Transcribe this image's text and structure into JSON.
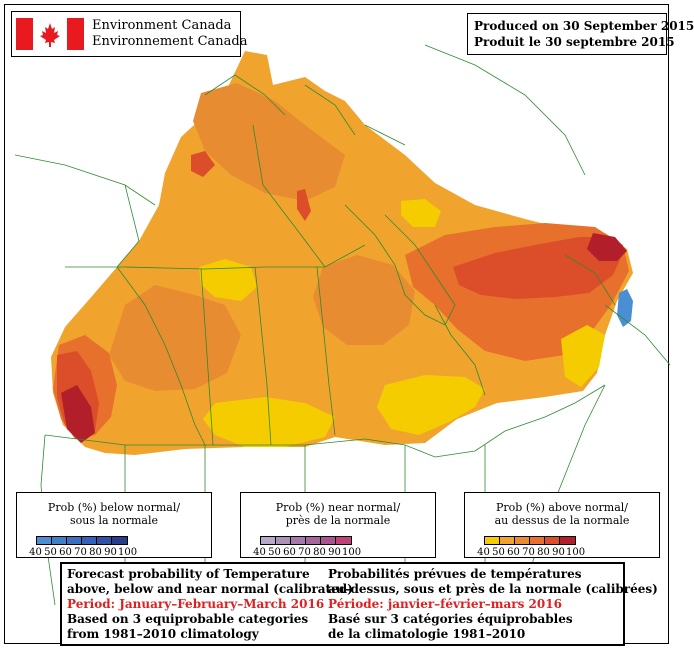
{
  "header": {
    "agency_en": "Environment Canada",
    "agency_fr": "Environnement Canada",
    "produced_en": "Produced on 30 September 2015",
    "produced_fr": "Produit le 30 septembre 2015"
  },
  "legends": [
    {
      "id": "below",
      "title_en": "Prob (%) below normal/",
      "title_fr": "sous la normale",
      "ticks": [
        "40",
        "50",
        "60",
        "70",
        "80",
        "90",
        "100"
      ],
      "colors": [
        "#4a8fd4",
        "#3f7fc8",
        "#3a70c0",
        "#3461b8",
        "#2f52a6",
        "#263e8a"
      ]
    },
    {
      "id": "near",
      "title_en": "Prob (%) near normal/",
      "title_fr": "près de la normale",
      "ticks": [
        "40",
        "50",
        "60",
        "70",
        "80",
        "90",
        "100"
      ],
      "colors": [
        "#b9a8c8",
        "#ad92b8",
        "#a57aaa",
        "#a6669c",
        "#ab5290",
        "#c0407a"
      ]
    },
    {
      "id": "above",
      "title_en": "Prob (%) above normal/",
      "title_fr": "au dessus de la normale",
      "ticks": [
        "40",
        "50",
        "60",
        "70",
        "80",
        "90",
        "100"
      ],
      "colors": [
        "#f5cc00",
        "#f0a42e",
        "#e88c32",
        "#e6702c",
        "#dc4d2a",
        "#b21e2a"
      ]
    }
  ],
  "info": {
    "en_line1": "Forecast probability of Temperature",
    "en_line2": "above, below and near normal (calibrated)",
    "en_period": "Period: January–February–March 2016",
    "en_line4": "Based on 3 equiprobable categories",
    "en_line5": "from 1981–2010 climatology",
    "fr_line1": "Probabilités prévues de températures",
    "fr_line2": "au–dessus, sous et près de la normale (calibrées)",
    "fr_period": "Période: janvier–février–mars 2016",
    "fr_line4": "Basé sur 3 catégories équiprobables",
    "fr_line5": "de la climatologie 1981–2010"
  },
  "map_colors": {
    "p40": "#f5cc00",
    "p50": "#f0a42e",
    "p60": "#e88c32",
    "p70": "#e6702c",
    "p80": "#dc4d2a",
    "p90": "#b21e2a",
    "below40": "#4a8fd4",
    "boundary": "#2e8b2e"
  }
}
